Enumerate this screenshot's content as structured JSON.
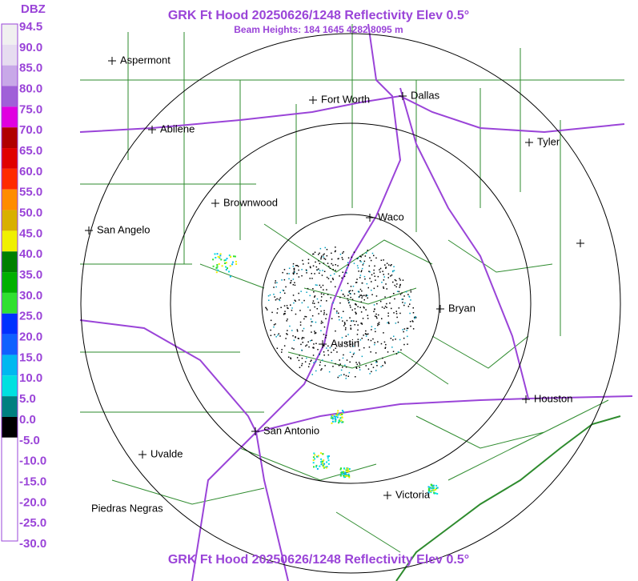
{
  "header": {
    "title": "GRK Ft Hood 20250626/1248 Reflectivity Elev 0.5°",
    "subtitle": "Beam Heights: 184 1645 4282 8095 m",
    "footer": "GRK Ft Hood 20250626/1248 Reflectivity Elev 0.5°"
  },
  "scale": {
    "unit": "DBZ",
    "labels": [
      "94.5",
      "90.0",
      "85.0",
      "80.0",
      "75.0",
      "70.0",
      "65.0",
      "60.0",
      "55.0",
      "50.0",
      "45.0",
      "40.0",
      "35.0",
      "30.0",
      "25.0",
      "20.0",
      "15.0",
      "10.0",
      "5.0",
      "0.0",
      "-5.0",
      "-10.0",
      "-15.0",
      "-20.0",
      "-25.0",
      "-30.0"
    ]
  },
  "cities": [
    "Aspermont",
    "Fort Worth",
    "Dallas",
    "Abilene",
    "Tyler",
    "Brownwood",
    "Waco",
    "San Angelo",
    "Bryan",
    "Austin",
    "Houston",
    "San Antonio",
    "Uvalde",
    "Victoria",
    "Piedras Negras"
  ]
}
